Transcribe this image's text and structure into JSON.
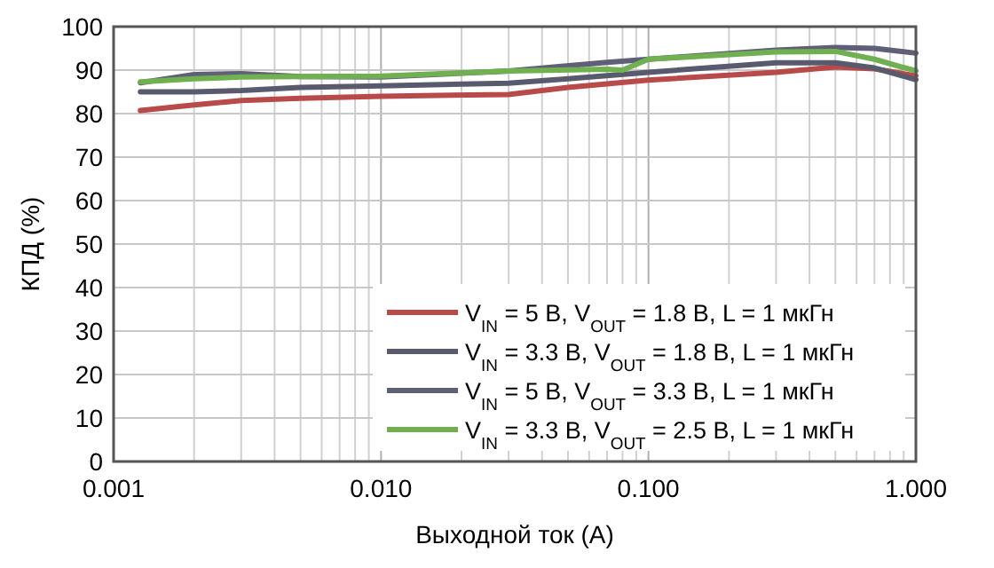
{
  "chart_data": {
    "type": "line",
    "xlabel": "Выходной ток (A)",
    "ylabel": "КПД (%)",
    "log": "x",
    "grid": true,
    "legend": "bottom right",
    "line_style": "solid",
    "xlim": [
      0.001,
      1
    ],
    "ylim": [
      0,
      100
    ],
    "xticks": [
      {
        "value": 0.001,
        "label": "0.001"
      },
      {
        "value": 0.002,
        "label": null
      },
      {
        "value": 0.003,
        "label": null
      },
      {
        "value": 0.004,
        "label": null
      },
      {
        "value": 0.005,
        "label": null
      },
      {
        "value": 0.006,
        "label": null
      },
      {
        "value": 0.007,
        "label": null
      },
      {
        "value": 0.008,
        "label": null
      },
      {
        "value": 0.009,
        "label": null
      },
      {
        "value": 0.01,
        "label": "0.010"
      },
      {
        "value": 0.02,
        "label": null
      },
      {
        "value": 0.03,
        "label": null
      },
      {
        "value": 0.04,
        "label": null
      },
      {
        "value": 0.05,
        "label": null
      },
      {
        "value": 0.06,
        "label": null
      },
      {
        "value": 0.07,
        "label": null
      },
      {
        "value": 0.08,
        "label": null
      },
      {
        "value": 0.09,
        "label": null
      },
      {
        "value": 0.1,
        "label": "0.100"
      },
      {
        "value": 0.2,
        "label": null
      },
      {
        "value": 0.3,
        "label": null
      },
      {
        "value": 0.4,
        "label": null
      },
      {
        "value": 0.5,
        "label": null
      },
      {
        "value": 0.6,
        "label": null
      },
      {
        "value": 0.7,
        "label": null
      },
      {
        "value": 0.8,
        "label": null
      },
      {
        "value": 0.9,
        "label": null
      },
      {
        "value": 1,
        "label": "1.000"
      }
    ],
    "yticks": [
      0,
      10,
      20,
      30,
      40,
      50,
      60,
      70,
      80,
      90,
      100
    ],
    "series": [
      {
        "name": "V$_{IN}$ = 5 В, V$_{OUT}$ = 1.8 В, L = 1 мкГн",
        "color": "#b84a4a",
        "x": [
          0.00126,
          0.002,
          0.003,
          0.005,
          0.01,
          0.03,
          0.05,
          0.1,
          0.3,
          0.5,
          0.7,
          1
        ],
        "values": [
          80.7,
          82,
          83,
          83.5,
          84,
          84.4,
          86,
          87.7,
          89.5,
          90.7,
          90.3,
          88.7
        ]
      },
      {
        "name": "V$_{IN}$ = 3.3 В, V$_{OUT}$ = 1.8 В, L = 1 мкГн",
        "color": "#5a5a6e",
        "x": [
          0.00126,
          0.002,
          0.003,
          0.005,
          0.01,
          0.03,
          0.05,
          0.1,
          0.3,
          0.5,
          0.7,
          1
        ],
        "values": [
          85,
          85,
          85.3,
          86,
          86.4,
          87,
          88,
          89.5,
          91.7,
          91.7,
          90.5,
          87.8
        ]
      },
      {
        "name": "V$_{IN}$ = 5 В, V$_{OUT}$ = 3.3 В, L = 1 мкГн",
        "color": "#5f5f78",
        "x": [
          0.00126,
          0.002,
          0.003,
          0.005,
          0.01,
          0.03,
          0.07,
          0.1,
          0.3,
          0.5,
          0.7,
          1
        ],
        "values": [
          87.1,
          89,
          89.2,
          88.5,
          88.4,
          89.8,
          91.8,
          92.5,
          94.6,
          95.2,
          95,
          93.9
        ]
      },
      {
        "name": "V$_{IN}$ = 3.3 В, V$_{OUT}$ = 2.5 В, L = 1 мкГн",
        "color": "#70b050",
        "x": [
          0.00126,
          0.002,
          0.003,
          0.005,
          0.01,
          0.03,
          0.07,
          0.08,
          0.1,
          0.3,
          0.5,
          0.7,
          1
        ],
        "values": [
          87.3,
          88,
          88.4,
          88.5,
          88.6,
          89.8,
          90.2,
          90,
          92.5,
          94.2,
          94.3,
          92.5,
          89.8
        ]
      }
    ]
  }
}
